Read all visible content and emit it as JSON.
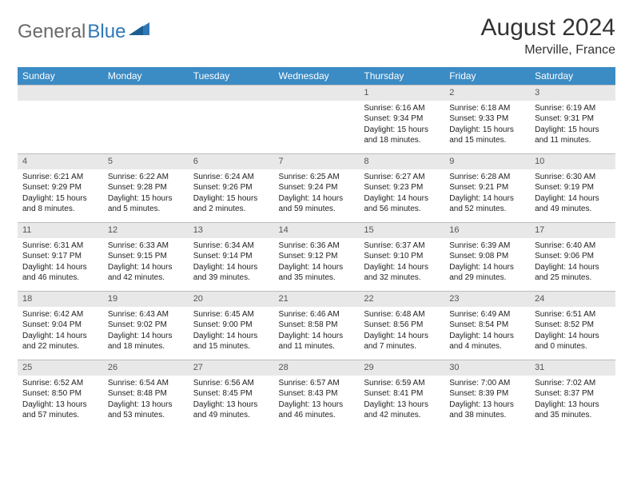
{
  "brand": {
    "part1": "General",
    "part2": "Blue"
  },
  "header": {
    "month": "August 2024",
    "location": "Merville, France"
  },
  "colors": {
    "header_bg": "#3b8bc4",
    "header_fg": "#ffffff",
    "daynum_bg": "#e8e8e8",
    "daynum_border": "#bcbcbc",
    "logo_gray": "#6a6a6a",
    "logo_blue": "#2f78b7",
    "text": "#222222"
  },
  "weekdays": [
    "Sunday",
    "Monday",
    "Tuesday",
    "Wednesday",
    "Thursday",
    "Friday",
    "Saturday"
  ],
  "weeks": [
    [
      {
        "n": "",
        "lines": []
      },
      {
        "n": "",
        "lines": []
      },
      {
        "n": "",
        "lines": []
      },
      {
        "n": "",
        "lines": []
      },
      {
        "n": "1",
        "lines": [
          "Sunrise: 6:16 AM",
          "Sunset: 9:34 PM",
          "Daylight: 15 hours",
          "and 18 minutes."
        ]
      },
      {
        "n": "2",
        "lines": [
          "Sunrise: 6:18 AM",
          "Sunset: 9:33 PM",
          "Daylight: 15 hours",
          "and 15 minutes."
        ]
      },
      {
        "n": "3",
        "lines": [
          "Sunrise: 6:19 AM",
          "Sunset: 9:31 PM",
          "Daylight: 15 hours",
          "and 11 minutes."
        ]
      }
    ],
    [
      {
        "n": "4",
        "lines": [
          "Sunrise: 6:21 AM",
          "Sunset: 9:29 PM",
          "Daylight: 15 hours",
          "and 8 minutes."
        ]
      },
      {
        "n": "5",
        "lines": [
          "Sunrise: 6:22 AM",
          "Sunset: 9:28 PM",
          "Daylight: 15 hours",
          "and 5 minutes."
        ]
      },
      {
        "n": "6",
        "lines": [
          "Sunrise: 6:24 AM",
          "Sunset: 9:26 PM",
          "Daylight: 15 hours",
          "and 2 minutes."
        ]
      },
      {
        "n": "7",
        "lines": [
          "Sunrise: 6:25 AM",
          "Sunset: 9:24 PM",
          "Daylight: 14 hours",
          "and 59 minutes."
        ]
      },
      {
        "n": "8",
        "lines": [
          "Sunrise: 6:27 AM",
          "Sunset: 9:23 PM",
          "Daylight: 14 hours",
          "and 56 minutes."
        ]
      },
      {
        "n": "9",
        "lines": [
          "Sunrise: 6:28 AM",
          "Sunset: 9:21 PM",
          "Daylight: 14 hours",
          "and 52 minutes."
        ]
      },
      {
        "n": "10",
        "lines": [
          "Sunrise: 6:30 AM",
          "Sunset: 9:19 PM",
          "Daylight: 14 hours",
          "and 49 minutes."
        ]
      }
    ],
    [
      {
        "n": "11",
        "lines": [
          "Sunrise: 6:31 AM",
          "Sunset: 9:17 PM",
          "Daylight: 14 hours",
          "and 46 minutes."
        ]
      },
      {
        "n": "12",
        "lines": [
          "Sunrise: 6:33 AM",
          "Sunset: 9:15 PM",
          "Daylight: 14 hours",
          "and 42 minutes."
        ]
      },
      {
        "n": "13",
        "lines": [
          "Sunrise: 6:34 AM",
          "Sunset: 9:14 PM",
          "Daylight: 14 hours",
          "and 39 minutes."
        ]
      },
      {
        "n": "14",
        "lines": [
          "Sunrise: 6:36 AM",
          "Sunset: 9:12 PM",
          "Daylight: 14 hours",
          "and 35 minutes."
        ]
      },
      {
        "n": "15",
        "lines": [
          "Sunrise: 6:37 AM",
          "Sunset: 9:10 PM",
          "Daylight: 14 hours",
          "and 32 minutes."
        ]
      },
      {
        "n": "16",
        "lines": [
          "Sunrise: 6:39 AM",
          "Sunset: 9:08 PM",
          "Daylight: 14 hours",
          "and 29 minutes."
        ]
      },
      {
        "n": "17",
        "lines": [
          "Sunrise: 6:40 AM",
          "Sunset: 9:06 PM",
          "Daylight: 14 hours",
          "and 25 minutes."
        ]
      }
    ],
    [
      {
        "n": "18",
        "lines": [
          "Sunrise: 6:42 AM",
          "Sunset: 9:04 PM",
          "Daylight: 14 hours",
          "and 22 minutes."
        ]
      },
      {
        "n": "19",
        "lines": [
          "Sunrise: 6:43 AM",
          "Sunset: 9:02 PM",
          "Daylight: 14 hours",
          "and 18 minutes."
        ]
      },
      {
        "n": "20",
        "lines": [
          "Sunrise: 6:45 AM",
          "Sunset: 9:00 PM",
          "Daylight: 14 hours",
          "and 15 minutes."
        ]
      },
      {
        "n": "21",
        "lines": [
          "Sunrise: 6:46 AM",
          "Sunset: 8:58 PM",
          "Daylight: 14 hours",
          "and 11 minutes."
        ]
      },
      {
        "n": "22",
        "lines": [
          "Sunrise: 6:48 AM",
          "Sunset: 8:56 PM",
          "Daylight: 14 hours",
          "and 7 minutes."
        ]
      },
      {
        "n": "23",
        "lines": [
          "Sunrise: 6:49 AM",
          "Sunset: 8:54 PM",
          "Daylight: 14 hours",
          "and 4 minutes."
        ]
      },
      {
        "n": "24",
        "lines": [
          "Sunrise: 6:51 AM",
          "Sunset: 8:52 PM",
          "Daylight: 14 hours",
          "and 0 minutes."
        ]
      }
    ],
    [
      {
        "n": "25",
        "lines": [
          "Sunrise: 6:52 AM",
          "Sunset: 8:50 PM",
          "Daylight: 13 hours",
          "and 57 minutes."
        ]
      },
      {
        "n": "26",
        "lines": [
          "Sunrise: 6:54 AM",
          "Sunset: 8:48 PM",
          "Daylight: 13 hours",
          "and 53 minutes."
        ]
      },
      {
        "n": "27",
        "lines": [
          "Sunrise: 6:56 AM",
          "Sunset: 8:45 PM",
          "Daylight: 13 hours",
          "and 49 minutes."
        ]
      },
      {
        "n": "28",
        "lines": [
          "Sunrise: 6:57 AM",
          "Sunset: 8:43 PM",
          "Daylight: 13 hours",
          "and 46 minutes."
        ]
      },
      {
        "n": "29",
        "lines": [
          "Sunrise: 6:59 AM",
          "Sunset: 8:41 PM",
          "Daylight: 13 hours",
          "and 42 minutes."
        ]
      },
      {
        "n": "30",
        "lines": [
          "Sunrise: 7:00 AM",
          "Sunset: 8:39 PM",
          "Daylight: 13 hours",
          "and 38 minutes."
        ]
      },
      {
        "n": "31",
        "lines": [
          "Sunrise: 7:02 AM",
          "Sunset: 8:37 PM",
          "Daylight: 13 hours",
          "and 35 minutes."
        ]
      }
    ]
  ]
}
